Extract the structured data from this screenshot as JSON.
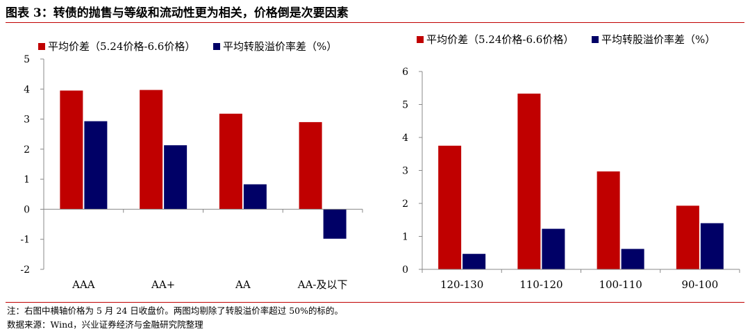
{
  "title": "图表 3：转债的抛售与等级和流动性更为相关，价格倒是次要因素",
  "note": "注：右图中横轴价格为 5 月 24 日收盘价。两图均剔除了转股溢价率超过 50%的标的。",
  "source": "数据来源：Wind，兴业证券经济与金融研究院整理",
  "colors": {
    "series0": "#c00000",
    "series1": "#000066",
    "accent": "#c00000"
  },
  "chart_data": [
    {
      "type": "bar",
      "categories": [
        "AAA",
        "AA+",
        "AA",
        "AA-及以下"
      ],
      "series": [
        {
          "name": "平均价差（5.24价格-6.6价格）",
          "values": [
            3.95,
            3.97,
            3.18,
            2.9
          ]
        },
        {
          "name": "平均转股溢价率差（%）",
          "values": [
            2.93,
            2.13,
            0.83,
            -0.98
          ]
        }
      ],
      "ylim": [
        -2,
        5
      ],
      "yticks": [
        -2,
        -1,
        0,
        1,
        2,
        3,
        4,
        5
      ],
      "legend": "top",
      "grid": false
    },
    {
      "type": "bar",
      "categories": [
        "120-130",
        "110-120",
        "100-110",
        "90-100"
      ],
      "series": [
        {
          "name": "平均价差（5.24价格-6.6价格）",
          "values": [
            3.75,
            5.33,
            2.97,
            1.93
          ]
        },
        {
          "name": "平均转股溢价率差（%）",
          "values": [
            0.47,
            1.23,
            0.62,
            1.4
          ]
        }
      ],
      "ylim": [
        0,
        6
      ],
      "yticks": [
        0,
        1,
        2,
        3,
        4,
        5,
        6
      ],
      "legend": "top",
      "grid": false
    }
  ]
}
